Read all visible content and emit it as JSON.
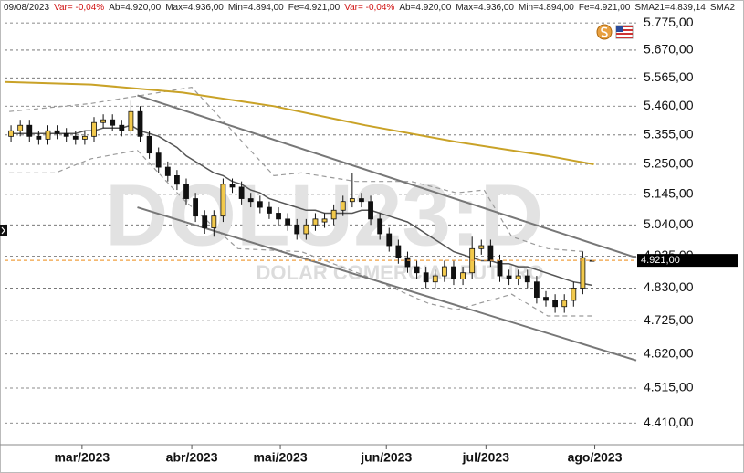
{
  "chart_data": {
    "type": "candlestick",
    "header": [
      "09/08/2023",
      "Var= -0,04%",
      "Ab=4.920,00",
      "Max=4.936,00",
      "Min=4.894,00",
      "Fe=4.921,00",
      "Var= -0,04%",
      "Ab=4.920,00",
      "Max=4.936,00",
      "Min=4.894,00",
      "Fe=4.921,00",
      "SMA21=4.839,14",
      "SMA2"
    ],
    "watermark": "DOLU23:D",
    "watermark_subtitle": "DOLAR COMERCIAL FUTURO",
    "log_scale": true,
    "grid": true,
    "xlim": [
      -0.7,
      67.8
    ],
    "ylim": [
      4.346,
      5.847
    ],
    "yticks": [
      {
        "value": 5.775,
        "label": "5.775,00"
      },
      {
        "value": 5.67,
        "label": "5.670,00"
      },
      {
        "value": 5.565,
        "label": "5.565,00"
      },
      {
        "value": 5.46,
        "label": "5.460,00"
      },
      {
        "value": 5.355,
        "label": "5.355,00"
      },
      {
        "value": 5.25,
        "label": "5.250,00"
      },
      {
        "value": 5.145,
        "label": "5.145,00"
      },
      {
        "value": 5.04,
        "label": "5.040,00"
      },
      {
        "value": 4.935,
        "label": "4.935,00"
      },
      {
        "value": 4.83,
        "label": "4.830,00"
      },
      {
        "value": 4.725,
        "label": "4.725,00"
      },
      {
        "value": 4.62,
        "label": "4.620,00"
      },
      {
        "value": 4.515,
        "label": "4.515,00"
      },
      {
        "value": 4.41,
        "label": "4.410,00"
      }
    ],
    "xticks": [
      {
        "value": 7.7,
        "label": "mar/2023"
      },
      {
        "value": 19.6,
        "label": "abr/2023"
      },
      {
        "value": 29.2,
        "label": "mai/2023"
      },
      {
        "value": 40.7,
        "label": "jun/2023"
      },
      {
        "value": 51.5,
        "label": "jul/2023"
      },
      {
        "value": 63.3,
        "label": "ago/2023"
      }
    ],
    "up_color": "#f2c94c",
    "down_color": "#111111",
    "x": [
      0,
      1,
      2,
      3,
      4,
      5,
      6,
      7,
      8,
      9,
      10,
      11,
      12,
      13,
      14,
      15,
      16,
      17,
      18,
      19,
      20,
      21,
      22,
      23,
      24,
      25,
      26,
      27,
      28,
      29,
      30,
      31,
      32,
      33,
      34,
      35,
      36,
      37,
      38,
      39,
      40,
      41,
      42,
      43,
      44,
      45,
      46,
      47,
      48,
      49,
      50,
      51,
      52,
      53,
      54,
      55,
      56,
      57,
      58,
      59,
      60,
      61,
      62,
      63
    ],
    "open": [
      5.35,
      5.37,
      5.39,
      5.35,
      5.34,
      5.37,
      5.36,
      5.35,
      5.34,
      5.35,
      5.4,
      5.41,
      5.39,
      5.37,
      5.44,
      5.35,
      5.29,
      5.24,
      5.21,
      5.18,
      5.13,
      5.07,
      5.03,
      5.07,
      5.18,
      5.17,
      5.13,
      5.12,
      5.1,
      5.08,
      5.06,
      5.04,
      5.01,
      5.04,
      5.05,
      5.06,
      5.09,
      5.12,
      5.13,
      5.12,
      5.06,
      5.01,
      4.97,
      4.93,
      4.9,
      4.88,
      4.85,
      4.87,
      4.9,
      4.86,
      4.88,
      4.96,
      4.97,
      4.92,
      4.87,
      4.86,
      4.87,
      4.85,
      4.8,
      4.79,
      4.77,
      4.79,
      4.83,
      4.92
    ],
    "high": [
      5.39,
      5.41,
      5.41,
      5.37,
      5.39,
      5.39,
      5.38,
      5.37,
      5.37,
      5.42,
      5.43,
      5.43,
      5.41,
      5.48,
      5.46,
      5.37,
      5.31,
      5.26,
      5.23,
      5.2,
      5.15,
      5.09,
      5.09,
      5.2,
      5.2,
      5.19,
      5.15,
      5.14,
      5.12,
      5.1,
      5.08,
      5.06,
      5.06,
      5.08,
      5.08,
      5.11,
      5.14,
      5.22,
      5.15,
      5.14,
      5.08,
      5.03,
      4.99,
      4.95,
      4.92,
      4.9,
      4.89,
      4.92,
      4.92,
      4.9,
      5.0,
      4.99,
      4.99,
      4.94,
      4.89,
      4.89,
      4.89,
      4.87,
      4.82,
      4.81,
      4.81,
      4.85,
      4.95,
      4.936
    ],
    "low": [
      5.33,
      5.35,
      5.33,
      5.32,
      5.32,
      5.34,
      5.33,
      5.32,
      5.32,
      5.33,
      5.38,
      5.37,
      5.35,
      5.35,
      5.33,
      5.27,
      5.22,
      5.19,
      5.16,
      5.11,
      5.05,
      5.01,
      5.0,
      5.05,
      5.15,
      5.11,
      5.1,
      5.08,
      5.06,
      5.04,
      5.02,
      4.99,
      4.99,
      5.02,
      5.03,
      5.04,
      5.07,
      5.1,
      5.1,
      5.04,
      4.99,
      4.95,
      4.91,
      4.88,
      4.86,
      4.83,
      4.83,
      4.85,
      4.84,
      4.84,
      4.86,
      4.94,
      4.9,
      4.85,
      4.84,
      4.84,
      4.83,
      4.78,
      4.77,
      4.75,
      4.75,
      4.77,
      4.81,
      4.894
    ],
    "close": [
      5.37,
      5.39,
      5.35,
      5.34,
      5.37,
      5.36,
      5.35,
      5.34,
      5.35,
      5.4,
      5.41,
      5.39,
      5.37,
      5.44,
      5.35,
      5.29,
      5.24,
      5.21,
      5.18,
      5.13,
      5.07,
      5.03,
      5.07,
      5.18,
      5.17,
      5.13,
      5.12,
      5.1,
      5.08,
      5.06,
      5.04,
      5.01,
      5.04,
      5.06,
      5.06,
      5.09,
      5.12,
      5.13,
      5.12,
      5.06,
      5.01,
      4.97,
      4.93,
      4.9,
      4.88,
      4.85,
      4.87,
      4.9,
      4.86,
      4.88,
      4.96,
      4.97,
      4.92,
      4.87,
      4.86,
      4.87,
      4.85,
      4.8,
      4.79,
      4.77,
      4.79,
      4.83,
      4.93,
      4.921
    ],
    "sma21": {
      "color": "#555555",
      "values": [
        5.36,
        5.36,
        5.36,
        5.36,
        5.36,
        5.36,
        5.36,
        5.36,
        5.37,
        5.37,
        5.38,
        5.38,
        5.38,
        5.39,
        5.37,
        5.36,
        5.35,
        5.33,
        5.31,
        5.28,
        5.26,
        5.24,
        5.22,
        5.21,
        5.19,
        5.18,
        5.16,
        5.15,
        5.13,
        5.12,
        5.11,
        5.1,
        5.09,
        5.09,
        5.08,
        5.08,
        5.08,
        5.08,
        5.09,
        5.09,
        5.08,
        5.07,
        5.06,
        5.05,
        5.03,
        5.01,
        4.99,
        4.97,
        4.95,
        4.94,
        4.93,
        4.92,
        4.92,
        4.91,
        4.91,
        4.9,
        4.9,
        4.89,
        4.88,
        4.87,
        4.86,
        4.85,
        4.845,
        4.839
      ]
    },
    "sma200": {
      "color": "#c9a227",
      "x": [
        -0.7,
        8.7,
        18.6,
        28.5,
        38.4,
        48.3,
        58.2,
        63.2
      ],
      "values": [
        5.55,
        5.54,
        5.51,
        5.46,
        5.39,
        5.33,
        5.28,
        5.25
      ]
    },
    "band_upper": {
      "color": "#9a9a9a",
      "x": [
        -0.2,
        8.7,
        19.6,
        28.5,
        31.5,
        37.4,
        43.4,
        48.3,
        51.3,
        54.3,
        58.2,
        62.2
      ],
      "values": [
        5.44,
        5.47,
        5.53,
        5.21,
        5.22,
        5.19,
        5.19,
        5.15,
        5.16,
        5.0,
        4.96,
        4.95
      ]
    },
    "band_lower": {
      "color": "#9a9a9a",
      "x": [
        -0.2,
        4.8,
        8.7,
        13.7,
        18.6,
        24.6,
        31.5,
        38.4,
        45.3,
        48.3,
        54.3,
        58.2,
        63.2
      ],
      "values": [
        5.22,
        5.22,
        5.27,
        5.3,
        5.13,
        4.96,
        4.95,
        4.87,
        4.78,
        4.76,
        4.81,
        4.74,
        4.74
      ]
    },
    "channel": [
      {
        "color": "#777777",
        "x": [
          13.7,
          67.8
        ],
        "values": [
          5.5,
          4.93
        ]
      },
      {
        "color": "#777777",
        "x": [
          13.7,
          67.8
        ],
        "values": [
          5.1,
          4.6
        ]
      }
    ],
    "last_price": {
      "value": 4.921,
      "label": "4.921,00",
      "color": "#f0a040"
    }
  }
}
